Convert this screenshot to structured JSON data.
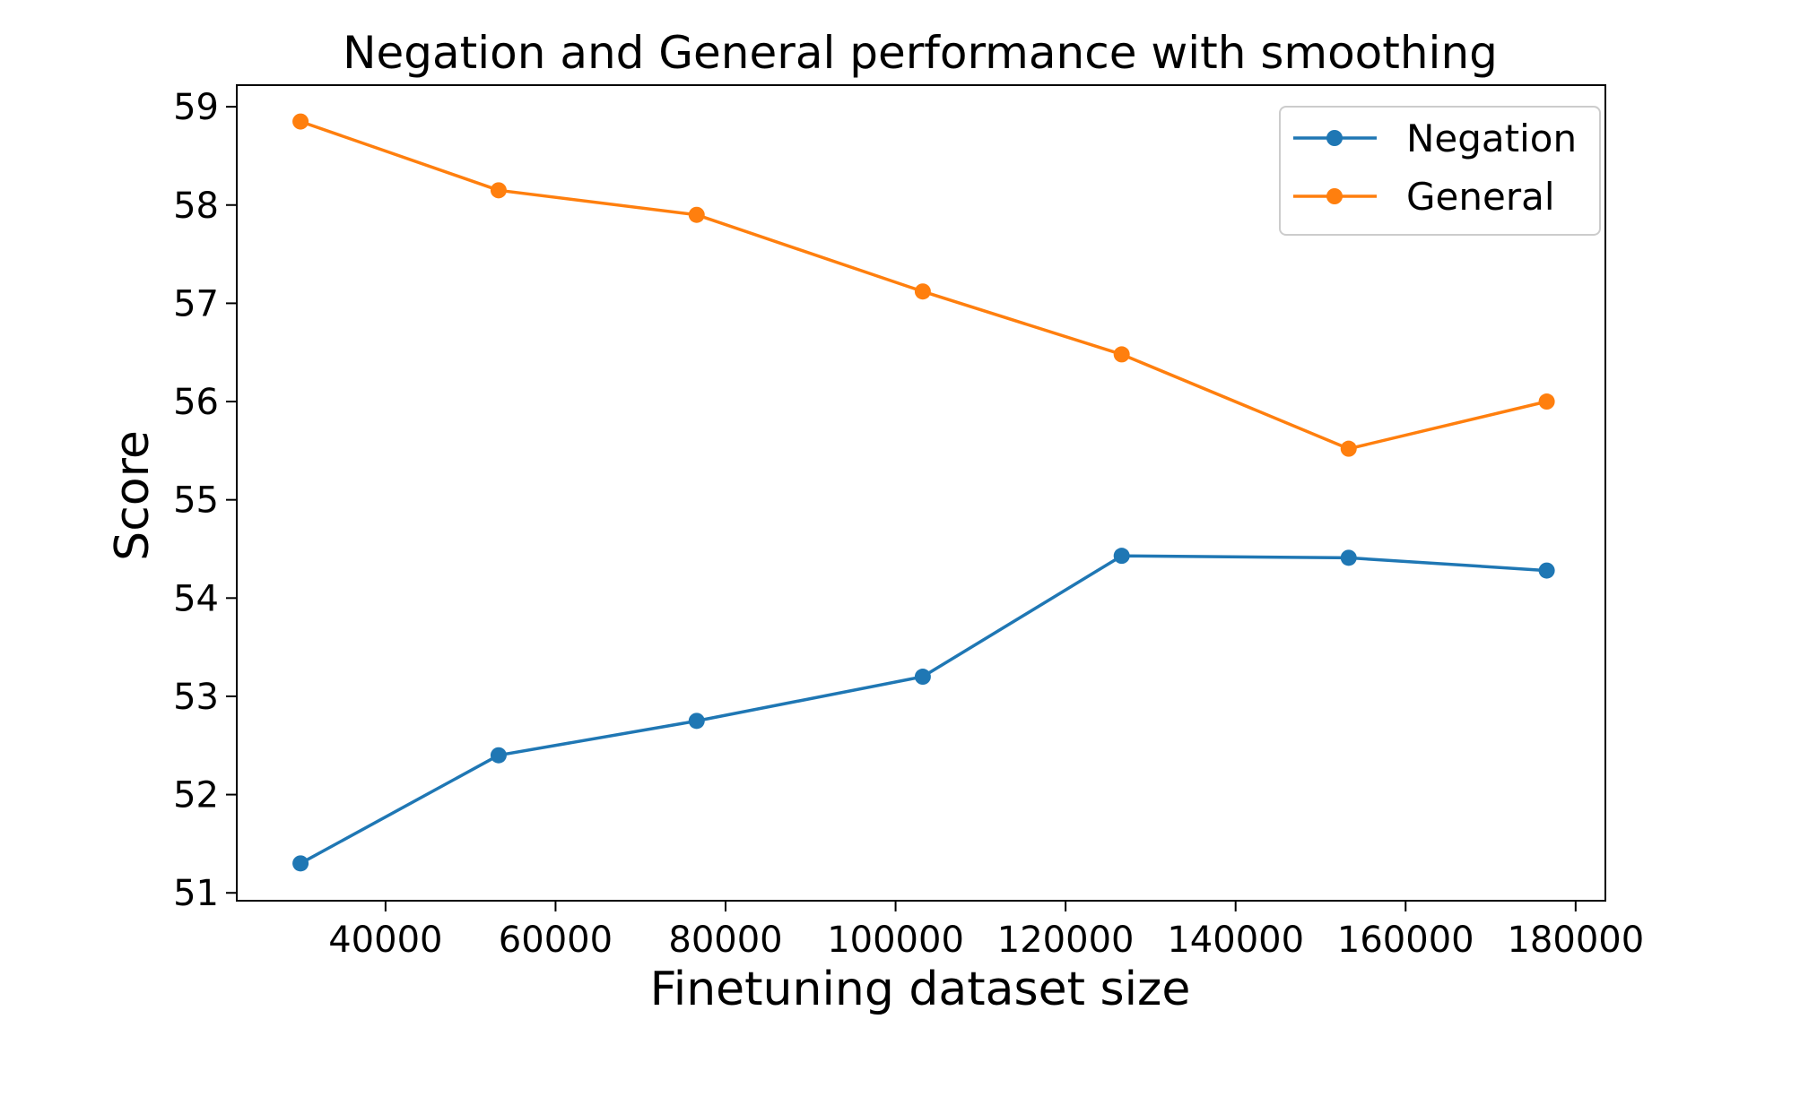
{
  "chart_data": {
    "type": "line",
    "title": "Negation and General performance with smoothing",
    "xlabel": "Finetuning dataset size",
    "ylabel": "Score",
    "xlim": [
      22500,
      183500
    ],
    "ylim": [
      50.92,
      59.22
    ],
    "xticks": [
      40000,
      60000,
      80000,
      100000,
      120000,
      140000,
      160000,
      180000
    ],
    "yticks": [
      51,
      52,
      53,
      54,
      55,
      56,
      57,
      58,
      59
    ],
    "grid": false,
    "legend_position": "top-right",
    "series": [
      {
        "name": "Negation",
        "color": "#1f77b4",
        "x": [
          30000,
          53300,
          76600,
          103200,
          126600,
          153300,
          176600
        ],
        "y": [
          51.3,
          52.4,
          52.75,
          53.2,
          54.43,
          54.41,
          54.28
        ]
      },
      {
        "name": "General",
        "color": "#ff7f0e",
        "x": [
          30000,
          53300,
          76600,
          103200,
          126600,
          153300,
          176600
        ],
        "y": [
          58.85,
          58.15,
          57.9,
          57.12,
          56.48,
          55.52,
          56.0
        ]
      }
    ]
  }
}
